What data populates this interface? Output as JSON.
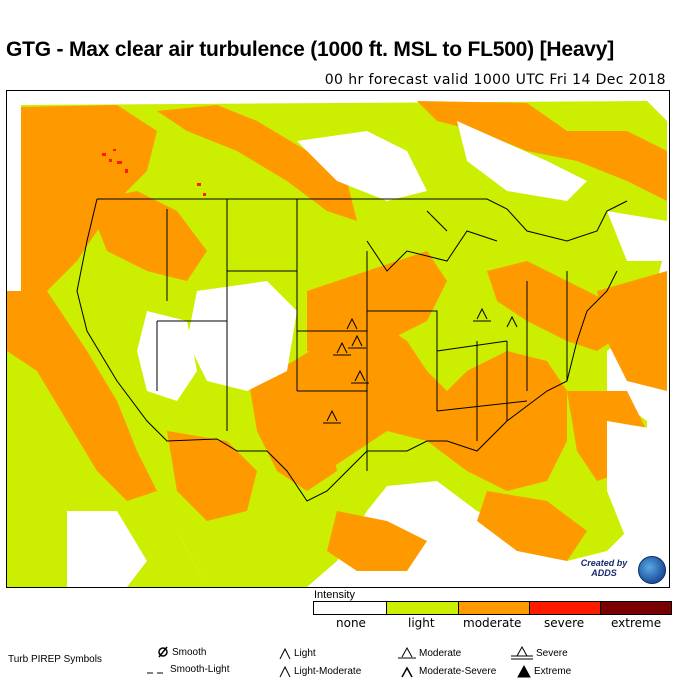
{
  "title": "GTG - Max clear air turbulence (1000 ft. MSL to FL500) [Heavy]",
  "subtitle": "00 hr forecast valid 1000 UTC Fri 14 Dec 2018",
  "colors": {
    "none": "#ffffff",
    "light": "#ccee00",
    "moderate": "#ff9900",
    "severe": "#ff1a00",
    "extreme": "#7a0000",
    "boundary": "#000000"
  },
  "legend": {
    "title": "Intensity",
    "categories": [
      {
        "label": "none",
        "color": "#ffffff"
      },
      {
        "label": "light",
        "color": "#ccee00"
      },
      {
        "label": "moderate",
        "color": "#ff9900"
      },
      {
        "label": "severe",
        "color": "#ff1a00"
      },
      {
        "label": "extreme",
        "color": "#7a0000"
      }
    ]
  },
  "logo": {
    "text": "Created by ADDS",
    "icon": "noaa-logo-icon"
  },
  "pirep": {
    "heading": "Turb PIREP Symbols",
    "items": [
      {
        "label": "Smooth",
        "icon": "smooth-icon"
      },
      {
        "label": "Smooth-Light",
        "icon": "smooth-light-icon"
      },
      {
        "label": "Light",
        "icon": "light-turb-icon"
      },
      {
        "label": "Light-Moderate",
        "icon": "light-moderate-turb-icon"
      },
      {
        "label": "Moderate",
        "icon": "moderate-turb-icon"
      },
      {
        "label": "Moderate-Severe",
        "icon": "moderate-severe-turb-icon"
      },
      {
        "label": "Severe",
        "icon": "severe-turb-icon"
      },
      {
        "label": "Extreme",
        "icon": "extreme-turb-icon"
      }
    ]
  }
}
